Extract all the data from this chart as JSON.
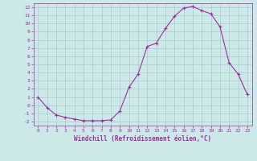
{
  "x": [
    0,
    1,
    2,
    3,
    4,
    5,
    6,
    7,
    8,
    9,
    10,
    11,
    12,
    13,
    14,
    15,
    16,
    17,
    18,
    19,
    20,
    21,
    22,
    23
  ],
  "y": [
    1.0,
    -0.3,
    -1.2,
    -1.5,
    -1.7,
    -1.9,
    -1.9,
    -1.9,
    -1.8,
    -0.7,
    2.2,
    3.8,
    7.2,
    7.6,
    9.4,
    10.9,
    11.9,
    12.1,
    11.6,
    11.2,
    9.6,
    5.2,
    3.8,
    1.3
  ],
  "line_color": "#993399",
  "marker": "+",
  "marker_color": "#993399",
  "bg_color": "#cce8e8",
  "grid_color": "#aacccc",
  "xlabel": "Windchill (Refroidissement éolien,°C)",
  "xlabel_color": "#993399",
  "tick_color": "#993399",
  "ylim": [
    -2.5,
    12.5
  ],
  "xlim": [
    -0.5,
    23.5
  ],
  "yticks": [
    -2,
    -1,
    0,
    1,
    2,
    3,
    4,
    5,
    6,
    7,
    8,
    9,
    10,
    11,
    12
  ],
  "xticks": [
    0,
    1,
    2,
    3,
    4,
    5,
    6,
    7,
    8,
    9,
    10,
    11,
    12,
    13,
    14,
    15,
    16,
    17,
    18,
    19,
    20,
    21,
    22,
    23
  ]
}
